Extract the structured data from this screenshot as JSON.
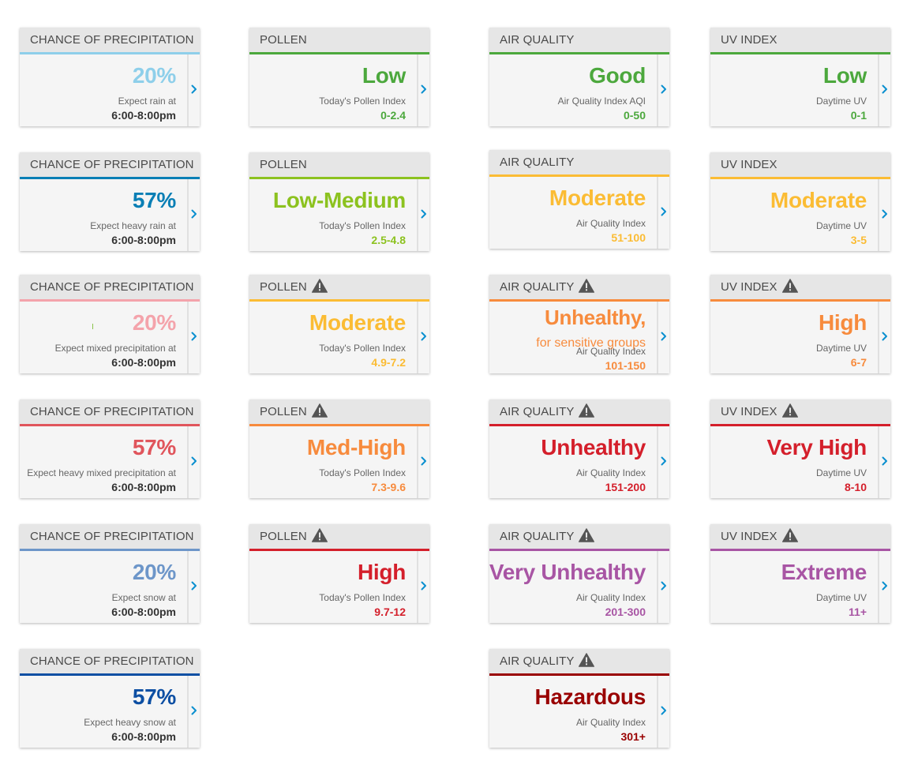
{
  "warning_icon": "warning-triangle-icon",
  "arrow_icon": "chevron-right-icon",
  "colors": {
    "arrow": "#0a8fcf",
    "header_text": "#4a4a4a",
    "desc_text": "#666666"
  },
  "cards": [
    {
      "title": "CHANCE OF PRECIPITATION",
      "value": "20%",
      "desc": "Expect rain at",
      "range": "6:00-8:00pm",
      "color": "#8ecfea",
      "range_color": "#333333"
    },
    {
      "title": "CHANCE OF PRECIPITATION",
      "value": "57%",
      "desc": "Expect heavy rain at",
      "range": "6:00-8:00pm",
      "color": "#0a7fb5",
      "range_color": "#333333"
    },
    {
      "title": "CHANCE OF PRECIPITATION",
      "value": "20%",
      "desc": "Expect mixed precipitation at",
      "range": "6:00-8:00pm",
      "color": "#f4a3ab",
      "range_color": "#333333"
    },
    {
      "title": "CHANCE OF PRECIPITATION",
      "value": "57%",
      "desc": "Expect heavy mixed precipitation at",
      "range": "6:00-8:00pm",
      "color": "#e0555c",
      "range_color": "#333333"
    },
    {
      "title": "CHANCE OF PRECIPITATION",
      "value": "20%",
      "desc": "Expect snow at",
      "range": "6:00-8:00pm",
      "color": "#6d96c9",
      "range_color": "#333333"
    },
    {
      "title": "CHANCE OF PRECIPITATION",
      "value": "57%",
      "desc": "Expect heavy snow at",
      "range": "6:00-8:00pm",
      "color": "#0d4fa3",
      "range_color": "#333333"
    },
    {
      "title": "POLLEN",
      "value": "Low",
      "desc": "Today's Pollen Index",
      "range": "0-2.4",
      "color": "#4ca83d",
      "warning": false
    },
    {
      "title": "POLLEN",
      "value": "Low-Medium",
      "desc": "Today's Pollen Index",
      "range": "2.5-4.8",
      "color": "#8cc21f",
      "warning": false
    },
    {
      "title": "POLLEN",
      "value": "Moderate",
      "desc": "Today's Pollen Index",
      "range": "4.9-7.2",
      "color": "#fbbc34",
      "warning": true
    },
    {
      "title": "POLLEN",
      "value": "Med-High",
      "desc": "Today's Pollen Index",
      "range": "7.3-9.6",
      "color": "#f78b3d",
      "warning": true
    },
    {
      "title": "POLLEN",
      "value": "High",
      "desc": "Today's Pollen Index",
      "range": "9.7-12",
      "color": "#d41f2b",
      "warning": true
    },
    {
      "title": "AIR QUALITY",
      "value": "Good",
      "desc": "Air Quality Index AQI",
      "range": "0-50",
      "color": "#4ca83d",
      "warning": false
    },
    {
      "title": "AIR QUALITY",
      "value": "Moderate",
      "desc": "Air Quality Index",
      "range": "51-100",
      "color": "#fbbc34",
      "warning": false
    },
    {
      "title": "AIR QUALITY",
      "value": "Unhealthy,",
      "sub": "for sensitive groups",
      "desc": "Air Quality Index",
      "range": "101-150",
      "color": "#f78b3d",
      "warning": true
    },
    {
      "title": "AIR QUALITY",
      "value": "Unhealthy",
      "desc": "Air Quality Index",
      "range": "151-200",
      "color": "#d41f2b",
      "warning": true
    },
    {
      "title": "AIR QUALITY",
      "value": "Very Unhealthy",
      "desc": "Air Quality Index",
      "range": "201-300",
      "color": "#a855a4",
      "warning": true
    },
    {
      "title": "AIR QUALITY",
      "value": "Hazardous",
      "desc": "Air Quality Index",
      "range": "301+",
      "color": "#990000",
      "warning": true
    },
    {
      "title": "UV INDEX",
      "value": "Low",
      "desc": "Daytime UV",
      "range": "0-1",
      "color": "#4ca83d",
      "warning": false
    },
    {
      "title": "UV INDEX",
      "value": "Moderate",
      "desc": "Daytime UV",
      "range": "3-5",
      "color": "#fbbc34",
      "warning": false
    },
    {
      "title": "UV INDEX",
      "value": "High",
      "desc": "Daytime UV",
      "range": "6-7",
      "color": "#f78b3d",
      "warning": true
    },
    {
      "title": "UV INDEX",
      "value": "Very High",
      "desc": "Daytime UV",
      "range": "8-10",
      "color": "#d41f2b",
      "warning": true
    },
    {
      "title": "UV INDEX",
      "value": "Extreme",
      "desc": "Daytime UV",
      "range": "11+",
      "color": "#a855a4",
      "warning": true
    }
  ]
}
